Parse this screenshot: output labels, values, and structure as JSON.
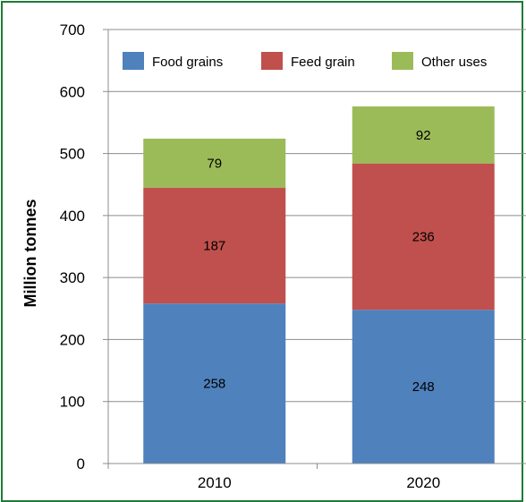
{
  "chart_data": {
    "type": "bar",
    "stacked": true,
    "categories": [
      "2010",
      "2020"
    ],
    "series": [
      {
        "name": "Food grains",
        "values": [
          258,
          248
        ],
        "color": "#4f81bd"
      },
      {
        "name": "Feed grain",
        "values": [
          187,
          236
        ],
        "color": "#c0504d"
      },
      {
        "name": "Other uses",
        "values": [
          79,
          92
        ],
        "color": "#9bbb59"
      }
    ],
    "ylabel": "Million tonnes",
    "ylim": [
      0,
      700
    ],
    "yticks": [
      0,
      100,
      200,
      300,
      400,
      500,
      600,
      700
    ],
    "grid": true,
    "legend": "top"
  }
}
